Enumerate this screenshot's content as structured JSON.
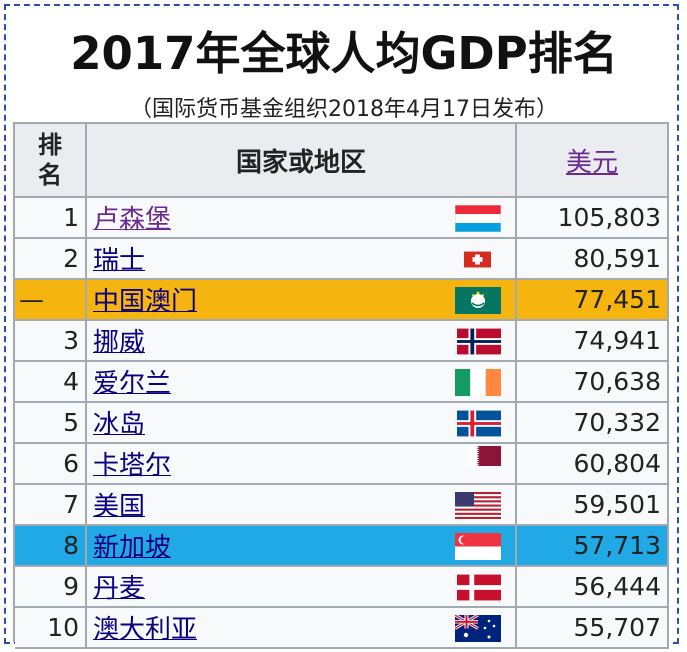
{
  "title": "2017年全球人均GDP排名",
  "subtitle": "（国际货币基金组织2018年4月17日发布）",
  "table": {
    "header": {
      "rank_line1": "排",
      "rank_line2": "名",
      "country": "国家或地区",
      "value": "美元"
    },
    "rows": [
      {
        "rank": "1",
        "name": "卢森堡",
        "flag": "luxembourg-flag-icon",
        "value": "105,803"
      },
      {
        "rank": "2",
        "name": "瑞士",
        "flag": "switzerland-flag-icon",
        "value": "80,591"
      },
      {
        "rank": "—",
        "name": "中国澳门",
        "flag": "macau-flag-icon",
        "value": "77,451"
      },
      {
        "rank": "3",
        "name": "挪威",
        "flag": "norway-flag-icon",
        "value": "74,941"
      },
      {
        "rank": "4",
        "name": "爱尔兰",
        "flag": "ireland-flag-icon",
        "value": "70,638"
      },
      {
        "rank": "5",
        "name": "冰岛",
        "flag": "iceland-flag-icon",
        "value": "70,332"
      },
      {
        "rank": "6",
        "name": "卡塔尔",
        "flag": "qatar-flag-icon",
        "value": "60,804"
      },
      {
        "rank": "7",
        "name": "美国",
        "flag": "usa-flag-icon",
        "value": "59,501"
      },
      {
        "rank": "8",
        "name": "新加坡",
        "flag": "singapore-flag-icon",
        "value": "57,713"
      },
      {
        "rank": "9",
        "name": "丹麦",
        "flag": "denmark-flag-icon",
        "value": "56,444"
      },
      {
        "rank": "10",
        "name": "澳大利亚",
        "flag": "australia-flag-icon",
        "value": "55,707"
      }
    ]
  },
  "colors": {
    "macau_highlight": "#f6b40e",
    "singapore_highlight": "#21a9e6",
    "link": "#0b0080",
    "visited_link": "#6b2a8f"
  }
}
